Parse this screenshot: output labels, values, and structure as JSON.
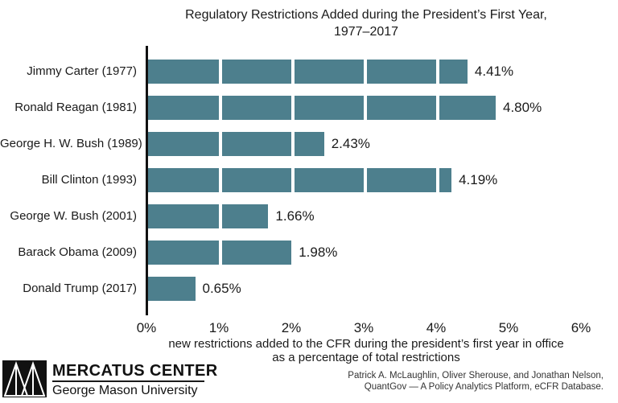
{
  "title": {
    "line1": "Regulatory Restrictions Added during the President’s First Year,",
    "line2": "1977–2017"
  },
  "chart_data": {
    "type": "bar",
    "orientation": "horizontal",
    "categories": [
      "Jimmy Carter (1977)",
      "Ronald Reagan (1981)",
      "George H. W. Bush (1989)",
      "Bill Clinton (1993)",
      "George W. Bush (2001)",
      "Barack Obama (2009)",
      "Donald Trump (2017)"
    ],
    "values": [
      4.41,
      4.8,
      2.43,
      4.19,
      1.66,
      1.98,
      0.65
    ],
    "value_labels": [
      "4.41%",
      "4.80%",
      "2.43%",
      "4.19%",
      "1.66%",
      "1.98%",
      "0.65%"
    ],
    "x_ticks": [
      "0%",
      "1%",
      "2%",
      "3%",
      "4%",
      "5%",
      "6%"
    ],
    "xlim": [
      0,
      6
    ],
    "bar_color": "#4d7f8d",
    "bar_segment_interval": 1,
    "grid": "off",
    "legend": "none",
    "xlabel_line1": "new restrictions added to the CFR during the president’s first year in office",
    "xlabel_line2": "as a percentage of total restrictions"
  },
  "footer": {
    "logo_title": "MERCATUS CENTER",
    "logo_subtitle": "George Mason University",
    "credit_line1": "Patrick A. McLaughlin, Oliver Sherouse, and Jonathan Nelson,",
    "credit_line2": "QuantGov — A Policy Analytics Platform, eCFR Database."
  }
}
